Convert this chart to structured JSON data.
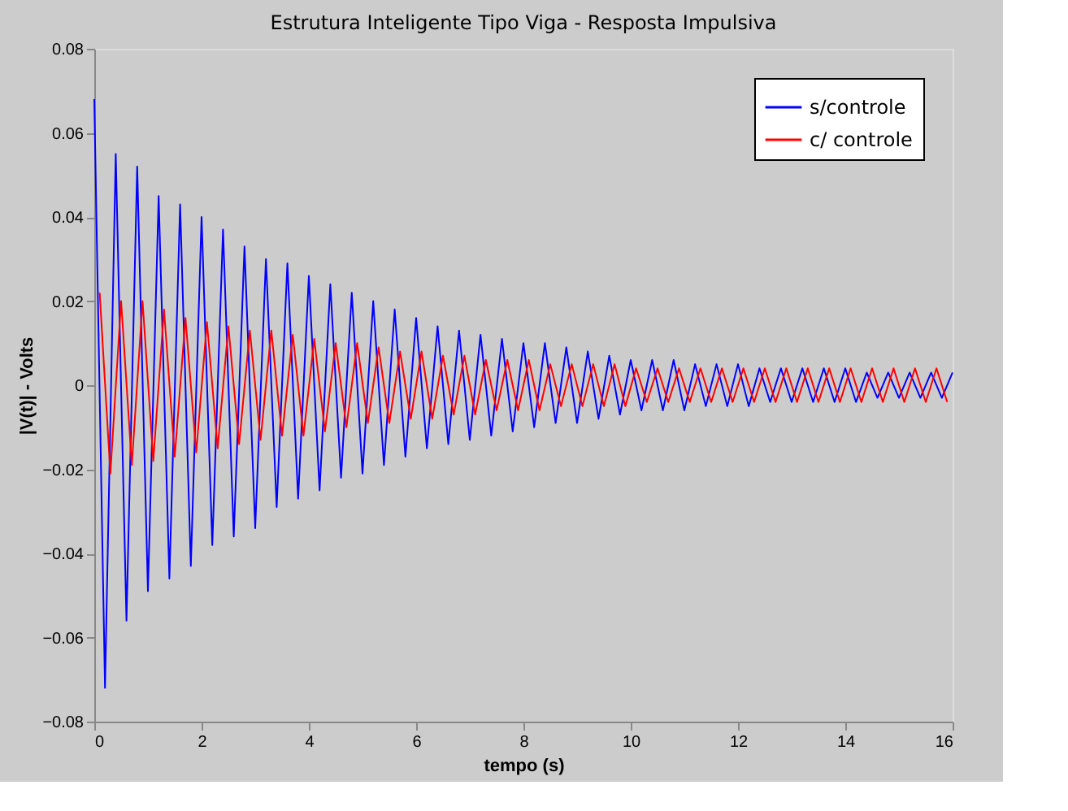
{
  "chart_data": {
    "type": "line",
    "title": "Estrutura Inteligente Tipo Viga - Resposta Impulsiva",
    "xlabel": "tempo (s)",
    "ylabel": "|V(t)| - Volts",
    "xlim": [
      0,
      16
    ],
    "ylim": [
      -0.08,
      0.08
    ],
    "xticks": [
      0,
      2,
      4,
      6,
      8,
      10,
      12,
      14,
      16
    ],
    "yticks": [
      -0.08,
      -0.06,
      -0.04,
      -0.02,
      0,
      0.02,
      0.04,
      0.06,
      0.08
    ],
    "grid": false,
    "legend": "top right",
    "series": [
      {
        "name": "s/controle",
        "color": "#0000ff",
        "x": [
          0,
          0.2,
          0.4,
          0.6,
          0.8,
          1.0,
          1.2,
          1.4,
          1.6,
          1.8,
          2.0,
          2.2,
          2.4,
          2.6,
          2.8,
          3.0,
          3.2,
          3.4,
          3.6,
          3.8,
          4.0,
          4.2,
          4.4,
          4.6,
          4.8,
          5.0,
          5.2,
          5.4,
          5.6,
          5.8,
          6.0,
          6.2,
          6.4,
          6.6,
          6.8,
          7.0,
          7.2,
          7.4,
          7.6,
          7.8,
          8.0,
          8.2,
          8.4,
          8.6,
          8.8,
          9.0,
          9.2,
          9.4,
          9.6,
          9.8,
          10.0,
          10.2,
          10.4,
          10.6,
          10.8,
          11.0,
          11.2,
          11.4,
          11.6,
          11.8,
          12.0,
          12.2,
          12.4,
          12.6,
          12.8,
          13.0,
          13.2,
          13.4,
          13.6,
          13.8,
          14.0,
          14.2,
          14.4,
          14.6,
          14.8,
          15.0,
          15.2,
          15.4,
          15.6,
          15.8,
          16.0
        ],
        "values": [
          0.068,
          -0.072,
          0.055,
          -0.056,
          0.052,
          -0.049,
          0.045,
          -0.046,
          0.043,
          -0.043,
          0.04,
          -0.038,
          0.037,
          -0.036,
          0.033,
          -0.034,
          0.03,
          -0.029,
          0.029,
          -0.027,
          0.026,
          -0.025,
          0.024,
          -0.022,
          0.022,
          -0.021,
          0.02,
          -0.019,
          0.018,
          -0.017,
          0.016,
          -0.015,
          0.014,
          -0.014,
          0.013,
          -0.013,
          0.012,
          -0.012,
          0.011,
          -0.011,
          0.01,
          -0.01,
          0.01,
          -0.009,
          0.009,
          -0.009,
          0.008,
          -0.008,
          0.007,
          -0.007,
          0.006,
          -0.006,
          0.006,
          -0.006,
          0.006,
          -0.006,
          0.005,
          -0.005,
          0.005,
          -0.005,
          0.005,
          -0.005,
          0.004,
          -0.004,
          0.004,
          -0.004,
          0.004,
          -0.004,
          0.004,
          -0.004,
          0.004,
          -0.004,
          0.003,
          -0.003,
          0.003,
          -0.003,
          0.003,
          -0.003,
          0.003,
          -0.003,
          0.003
        ]
      },
      {
        "name": "c/ controle",
        "color": "#ff0000",
        "x": [
          0.1,
          0.3,
          0.5,
          0.7,
          0.9,
          1.1,
          1.3,
          1.5,
          1.7,
          1.9,
          2.1,
          2.3,
          2.5,
          2.7,
          2.9,
          3.1,
          3.3,
          3.5,
          3.7,
          3.9,
          4.1,
          4.3,
          4.5,
          4.7,
          4.9,
          5.1,
          5.3,
          5.5,
          5.7,
          5.9,
          6.1,
          6.3,
          6.5,
          6.7,
          6.9,
          7.1,
          7.3,
          7.5,
          7.7,
          7.9,
          8.1,
          8.3,
          8.5,
          8.7,
          8.9,
          9.1,
          9.3,
          9.5,
          9.7,
          9.9,
          10.1,
          10.3,
          10.5,
          10.7,
          10.9,
          11.1,
          11.3,
          11.5,
          11.7,
          11.9,
          12.1,
          12.3,
          12.5,
          12.7,
          12.9,
          13.1,
          13.3,
          13.5,
          13.7,
          13.9,
          14.1,
          14.3,
          14.5,
          14.7,
          14.9,
          15.1,
          15.3,
          15.5,
          15.7,
          15.9
        ],
        "values": [
          0.022,
          -0.021,
          0.02,
          -0.019,
          0.02,
          -0.018,
          0.018,
          -0.017,
          0.016,
          -0.016,
          0.015,
          -0.015,
          0.014,
          -0.014,
          0.013,
          -0.013,
          0.013,
          -0.012,
          0.012,
          -0.012,
          0.011,
          -0.011,
          0.01,
          -0.01,
          0.01,
          -0.009,
          0.009,
          -0.009,
          0.008,
          -0.008,
          0.008,
          -0.008,
          0.007,
          -0.007,
          0.007,
          -0.007,
          0.006,
          -0.006,
          0.006,
          -0.006,
          0.006,
          -0.006,
          0.005,
          -0.005,
          0.005,
          -0.005,
          0.005,
          -0.005,
          0.005,
          -0.005,
          0.004,
          -0.004,
          0.004,
          -0.004,
          0.004,
          -0.004,
          0.004,
          -0.004,
          0.004,
          -0.004,
          0.004,
          -0.004,
          0.004,
          -0.004,
          0.004,
          -0.004,
          0.004,
          -0.004,
          0.004,
          -0.004,
          0.004,
          -0.004,
          0.004,
          -0.004,
          0.004,
          -0.004,
          0.004,
          -0.004,
          0.004,
          -0.004
        ]
      }
    ]
  }
}
